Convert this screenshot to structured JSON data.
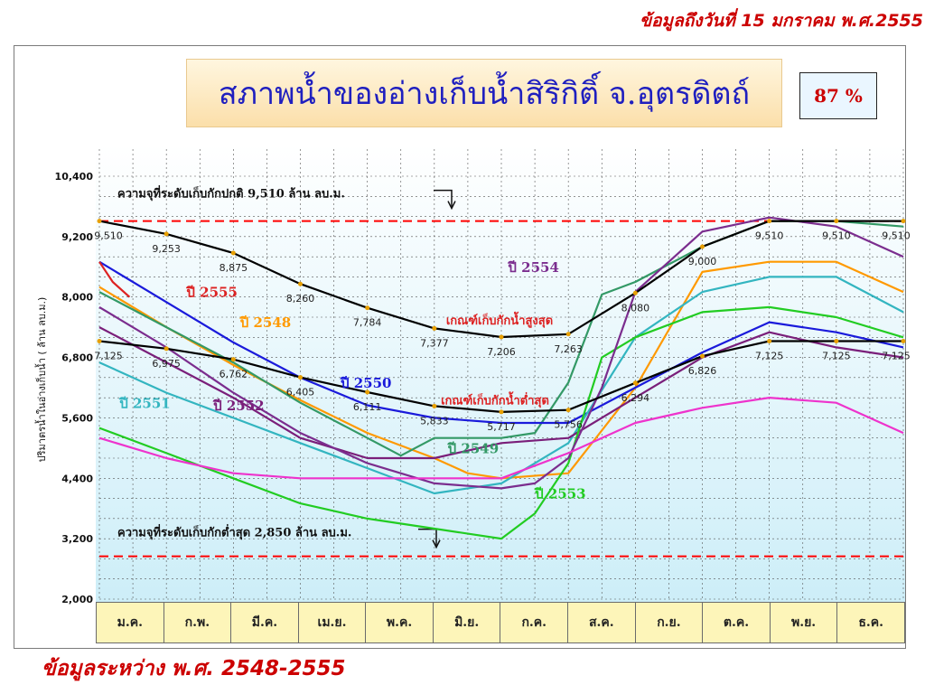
{
  "header": {
    "date_caption": "ข้อมูลถึงวันที่ 15 มกราคม พ.ศ.2555",
    "range_caption": "ข้อมูลระหว่าง พ.ศ. 2548-2555"
  },
  "percent_box": "87 %",
  "colors": {
    "y2548": "#ff9900",
    "y2549": "#339966",
    "y2550": "#1a1adb",
    "y2551": "#33b5c0",
    "y2552": "#7a1f7a",
    "y2553": "#22cc22",
    "y2554": "#7b2d8e",
    "y2555": "#dd2222",
    "upper_rule": "#000000",
    "lower_rule": "#000000",
    "limit_line": "#ff0000"
  },
  "chart_data": {
    "type": "line",
    "title": "สภาพน้ำของอ่างเก็บน้ำสิริกิติ์ จ.อุตรดิตถ์",
    "ylabel": "ปริมาตรน้ำในอ่างเก็บน้ำ ( ล้าน ลบ.ม.)",
    "xlabel": "",
    "ylim": [
      2000,
      10400
    ],
    "yticks": [
      2000,
      3200,
      4400,
      5600,
      6800,
      8000,
      9200,
      10400
    ],
    "ytick_labels": [
      "2,000",
      "3,200",
      "4,400",
      "5,600",
      "6,800",
      "8,000",
      "9,200",
      "10,400"
    ],
    "months": [
      "ม.ค.",
      "ก.พ.",
      "มี.ค.",
      "เม.ย.",
      "พ.ค.",
      "มิ.ย.",
      "ก.ค.",
      "ส.ค.",
      "ก.ย.",
      "ต.ค.",
      "พ.ย.",
      "ธ.ค."
    ],
    "grid": true,
    "capacity_lines": [
      {
        "label": "ความจุที่ระดับเก็บกักปกติ 9,510 ล้าน ลบ.ม.",
        "value": 9510
      },
      {
        "label": "ความจุที่ระดับเก็บกักต่ำสุด 2,850 ล้าน ลบ.ม.",
        "value": 2850
      }
    ],
    "rule_curves": [
      {
        "name": "เกณฑ์เก็บกักน้ำสูงสุด",
        "x": [
          0,
          1,
          2,
          3,
          4,
          5,
          6,
          7,
          8,
          9,
          10,
          11,
          12
        ],
        "values": [
          9510,
          9253,
          8875,
          8260,
          7784,
          7377,
          7206,
          7263,
          8080,
          9000,
          9510,
          9510,
          9510
        ],
        "point_labels": [
          "9,510",
          "9,253",
          "8,875",
          "8,260",
          "7,784",
          "7,377",
          "7,206",
          "7,263",
          "8,080",
          "9,000",
          "9,510",
          "9,510",
          "9,510"
        ]
      },
      {
        "name": "เกณฑ์เก็บกักน้ำต่ำสุด",
        "x": [
          0,
          1,
          2,
          3,
          4,
          5,
          6,
          7,
          8,
          9,
          10,
          11,
          12
        ],
        "values": [
          7125,
          6975,
          6762,
          6405,
          6111,
          5833,
          5717,
          5756,
          6294,
          6826,
          7125,
          7125,
          7125
        ],
        "point_labels": [
          "7,125",
          "6,975",
          "6,762",
          "6,405",
          "6,111",
          "5,833",
          "5,717",
          "5,756",
          "6,294",
          "6,826",
          "7,125",
          "7,125",
          "7,125"
        ]
      }
    ],
    "series": [
      {
        "name": "ปี 2548",
        "x": [
          0,
          1,
          2,
          3,
          4,
          5,
          5.5,
          6,
          7,
          8,
          9,
          10,
          11,
          12
        ],
        "values": [
          8200,
          7400,
          6650,
          5950,
          5300,
          4800,
          4500,
          4400,
          4500,
          6200,
          8500,
          8700,
          8700,
          8100
        ]
      },
      {
        "name": "ปี 2549",
        "x": [
          0,
          1,
          2,
          3,
          4,
          4.5,
          5,
          6,
          6.5,
          7,
          7.5,
          8,
          9,
          10,
          10.5,
          11,
          12
        ],
        "values": [
          8100,
          7400,
          6700,
          5900,
          5200,
          4850,
          5200,
          5200,
          5300,
          6300,
          8050,
          8300,
          9000,
          9510,
          9510,
          9510,
          9400
        ]
      },
      {
        "name": "ปี 2550",
        "x": [
          0,
          1,
          2,
          3,
          4,
          5,
          6,
          7,
          8,
          9,
          10,
          11,
          12
        ],
        "values": [
          8700,
          7900,
          7100,
          6400,
          5850,
          5600,
          5500,
          5500,
          6200,
          6900,
          7500,
          7300,
          7000
        ]
      },
      {
        "name": "ปี 2551",
        "x": [
          0,
          1,
          2,
          3,
          4,
          5,
          6,
          7,
          8,
          9,
          10,
          11,
          12
        ],
        "values": [
          6700,
          6100,
          5600,
          5100,
          4600,
          4100,
          4300,
          5100,
          7200,
          8100,
          8400,
          8400,
          7700
        ]
      },
      {
        "name": "ปี 2552",
        "x": [
          0,
          1,
          2,
          3,
          4,
          5,
          6,
          7,
          8,
          9,
          10,
          11,
          12
        ],
        "values": [
          7400,
          6700,
          6000,
          5200,
          4800,
          4800,
          5100,
          5200,
          6000,
          6800,
          7300,
          7000,
          6800
        ]
      },
      {
        "name": "ปี 2553",
        "x": [
          0,
          1,
          2,
          3,
          4,
          5,
          6,
          6.5,
          7,
          7.5,
          8,
          9,
          10,
          11,
          12
        ],
        "values": [
          5400,
          4900,
          4400,
          3900,
          3600,
          3400,
          3200,
          3700,
          4700,
          6800,
          7200,
          7700,
          7800,
          7600,
          7200
        ]
      },
      {
        "name": "ปี 2554",
        "x": [
          0,
          1,
          2,
          3,
          4,
          5,
          6,
          6.5,
          7,
          7.5,
          8,
          9,
          10,
          11,
          12
        ],
        "values": [
          7800,
          7000,
          6100,
          5300,
          4700,
          4300,
          4200,
          4300,
          4800,
          6200,
          8100,
          9300,
          9580,
          9400,
          8800
        ]
      },
      {
        "name": "ปี 2555",
        "x": [
          0,
          0.2,
          0.45
        ],
        "values": [
          8700,
          8300,
          8000
        ]
      },
      {
        "name": "",
        "x": [
          0,
          1,
          2,
          3,
          4,
          5,
          6,
          7,
          8,
          9,
          10,
          11,
          12
        ],
        "values": [
          5200,
          4800,
          4500,
          4400,
          4400,
          4400,
          4400,
          4900,
          5500,
          5800,
          6000,
          5900,
          5300
        ]
      }
    ],
    "annotations": [
      {
        "text": "ปี 2555",
        "x": 1.3,
        "y": 8000
      },
      {
        "text": "ปี 2548",
        "x": 2.1,
        "y": 7400
      },
      {
        "text": "ปี 2554",
        "x": 6.1,
        "y": 8500
      },
      {
        "text": "ปี 2550",
        "x": 3.6,
        "y": 6200
      },
      {
        "text": "ปี 2551",
        "x": 0.3,
        "y": 5800
      },
      {
        "text": "ปี 2552",
        "x": 1.7,
        "y": 5750
      },
      {
        "text": "ปี 2549",
        "x": 5.2,
        "y": 4900
      },
      {
        "text": "ปี 2553",
        "x": 6.5,
        "y": 4000
      }
    ]
  }
}
